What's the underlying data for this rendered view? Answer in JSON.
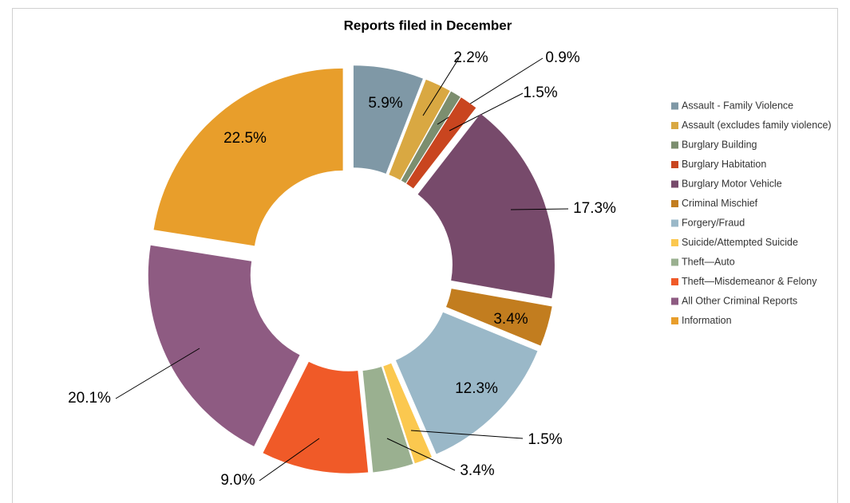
{
  "chart_data": {
    "type": "donut",
    "title": "Reports filed in December",
    "categories": [
      "Assault - Family Violence",
      "Assault (excludes family violence)",
      "Burglary Building",
      "Burglary Habitation",
      "Burglary Motor Vehicle",
      "Criminal Mischief",
      "Forgery/Fraud",
      "Suicide/Attempted Suicide",
      "Theft—Auto",
      "Theft—Misdemeanor & Felony",
      "All Other Criminal Reports",
      "Information"
    ],
    "values": [
      5.9,
      2.2,
      0.9,
      1.5,
      17.3,
      3.4,
      12.3,
      1.5,
      3.4,
      9.0,
      20.1,
      22.5
    ],
    "value_labels": [
      "5.9%",
      "2.2%",
      "0.9%",
      "1.5%",
      "17.3%",
      "3.4%",
      "12.3%",
      "1.5%",
      "3.4%",
      "9.0%",
      "20.1%",
      "22.5%"
    ],
    "colors": [
      "#7f98a6",
      "#d9a842",
      "#7c8e6f",
      "#c9451f",
      "#774a6b",
      "#c27d1f",
      "#9ab8c8",
      "#fbc84f",
      "#9ab090",
      "#f05a28",
      "#8e5b82",
      "#e89e2b"
    ],
    "legend": "right"
  }
}
